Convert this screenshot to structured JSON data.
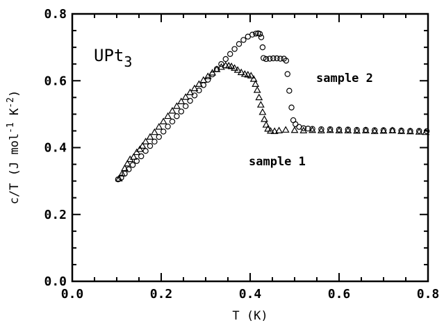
{
  "chart_data": {
    "type": "scatter",
    "title": "UPt",
    "title_sub": "3",
    "xlabel": "T (K)",
    "ylabel": {
      "base": "c/T (J mol",
      "exp1": "-1",
      "mid": " K",
      "exp2": "-2",
      "end": ")"
    },
    "xlim": [
      0.0,
      0.8
    ],
    "ylim": [
      0.0,
      0.8
    ],
    "xticks": [
      "0.0",
      "0.2",
      "0.4",
      "0.6",
      "0.8"
    ],
    "yticks": [
      "0.0",
      "0.2",
      "0.4",
      "0.6",
      "0.8"
    ],
    "grid": false,
    "annotations": [
      {
        "text": "sample 2",
        "series": "sample 2"
      },
      {
        "text": "sample 1",
        "series": "sample 1"
      }
    ],
    "series": [
      {
        "name": "sample 1",
        "marker": "triangle",
        "points": [
          [
            0.105,
            0.307
          ],
          [
            0.112,
            0.322
          ],
          [
            0.118,
            0.338
          ],
          [
            0.124,
            0.352
          ],
          [
            0.13,
            0.365
          ],
          [
            0.138,
            0.372
          ],
          [
            0.145,
            0.386
          ],
          [
            0.152,
            0.395
          ],
          [
            0.158,
            0.405
          ],
          [
            0.165,
            0.418
          ],
          [
            0.175,
            0.432
          ],
          [
            0.185,
            0.446
          ],
          [
            0.195,
            0.462
          ],
          [
            0.205,
            0.478
          ],
          [
            0.215,
            0.494
          ],
          [
            0.225,
            0.51
          ],
          [
            0.235,
            0.524
          ],
          [
            0.245,
            0.538
          ],
          [
            0.255,
            0.551
          ],
          [
            0.265,
            0.565
          ],
          [
            0.275,
            0.577
          ],
          [
            0.285,
            0.59
          ],
          [
            0.295,
            0.602
          ],
          [
            0.305,
            0.613
          ],
          [
            0.315,
            0.624
          ],
          [
            0.325,
            0.634
          ],
          [
            0.335,
            0.641
          ],
          [
            0.345,
            0.646
          ],
          [
            0.352,
            0.645
          ],
          [
            0.358,
            0.643
          ],
          [
            0.365,
            0.638
          ],
          [
            0.372,
            0.632
          ],
          [
            0.38,
            0.625
          ],
          [
            0.388,
            0.62
          ],
          [
            0.395,
            0.618
          ],
          [
            0.402,
            0.615
          ],
          [
            0.408,
            0.605
          ],
          [
            0.412,
            0.59
          ],
          [
            0.416,
            0.572
          ],
          [
            0.42,
            0.55
          ],
          [
            0.424,
            0.528
          ],
          [
            0.428,
            0.506
          ],
          [
            0.432,
            0.485
          ],
          [
            0.436,
            0.468
          ],
          [
            0.44,
            0.456
          ],
          [
            0.446,
            0.45
          ],
          [
            0.455,
            0.449
          ],
          [
            0.465,
            0.451
          ],
          [
            0.48,
            0.453
          ],
          [
            0.5,
            0.452
          ],
          [
            0.52,
            0.451
          ],
          [
            0.54,
            0.452
          ],
          [
            0.56,
            0.451
          ],
          [
            0.58,
            0.452
          ],
          [
            0.6,
            0.451
          ],
          [
            0.62,
            0.451
          ],
          [
            0.64,
            0.45
          ],
          [
            0.66,
            0.451
          ],
          [
            0.68,
            0.449
          ],
          [
            0.7,
            0.45
          ],
          [
            0.72,
            0.451
          ],
          [
            0.74,
            0.449
          ],
          [
            0.76,
            0.448
          ],
          [
            0.78,
            0.447
          ],
          [
            0.795,
            0.446
          ]
        ]
      },
      {
        "name": "sample 2",
        "marker": "circle",
        "points": [
          [
            0.103,
            0.305
          ],
          [
            0.11,
            0.31
          ],
          [
            0.118,
            0.322
          ],
          [
            0.127,
            0.335
          ],
          [
            0.136,
            0.348
          ],
          [
            0.145,
            0.36
          ],
          [
            0.155,
            0.374
          ],
          [
            0.165,
            0.39
          ],
          [
            0.175,
            0.405
          ],
          [
            0.185,
            0.418
          ],
          [
            0.195,
            0.432
          ],
          [
            0.205,
            0.448
          ],
          [
            0.215,
            0.463
          ],
          [
            0.225,
            0.478
          ],
          [
            0.235,
            0.494
          ],
          [
            0.245,
            0.508
          ],
          [
            0.255,
            0.524
          ],
          [
            0.265,
            0.54
          ],
          [
            0.275,
            0.556
          ],
          [
            0.285,
            0.571
          ],
          [
            0.295,
            0.587
          ],
          [
            0.305,
            0.603
          ],
          [
            0.315,
            0.619
          ],
          [
            0.325,
            0.635
          ],
          [
            0.335,
            0.65
          ],
          [
            0.345,
            0.665
          ],
          [
            0.355,
            0.68
          ],
          [
            0.365,
            0.695
          ],
          [
            0.375,
            0.71
          ],
          [
            0.385,
            0.722
          ],
          [
            0.395,
            0.732
          ],
          [
            0.405,
            0.738
          ],
          [
            0.413,
            0.741
          ],
          [
            0.418,
            0.742
          ],
          [
            0.422,
            0.74
          ],
          [
            0.425,
            0.73
          ],
          [
            0.428,
            0.7
          ],
          [
            0.43,
            0.668
          ],
          [
            0.436,
            0.665
          ],
          [
            0.444,
            0.666
          ],
          [
            0.452,
            0.667
          ],
          [
            0.46,
            0.667
          ],
          [
            0.468,
            0.666
          ],
          [
            0.476,
            0.666
          ],
          [
            0.481,
            0.66
          ],
          [
            0.484,
            0.62
          ],
          [
            0.488,
            0.57
          ],
          [
            0.493,
            0.52
          ],
          [
            0.497,
            0.482
          ],
          [
            0.502,
            0.47
          ],
          [
            0.51,
            0.462
          ],
          [
            0.52,
            0.458
          ],
          [
            0.53,
            0.457
          ],
          [
            0.54,
            0.456
          ],
          [
            0.56,
            0.455
          ],
          [
            0.58,
            0.455
          ],
          [
            0.6,
            0.454
          ],
          [
            0.62,
            0.454
          ],
          [
            0.64,
            0.453
          ],
          [
            0.66,
            0.453
          ],
          [
            0.68,
            0.452
          ],
          [
            0.7,
            0.452
          ],
          [
            0.72,
            0.452
          ],
          [
            0.74,
            0.451
          ],
          [
            0.76,
            0.45
          ],
          [
            0.78,
            0.45
          ],
          [
            0.797,
            0.449
          ]
        ]
      }
    ]
  }
}
